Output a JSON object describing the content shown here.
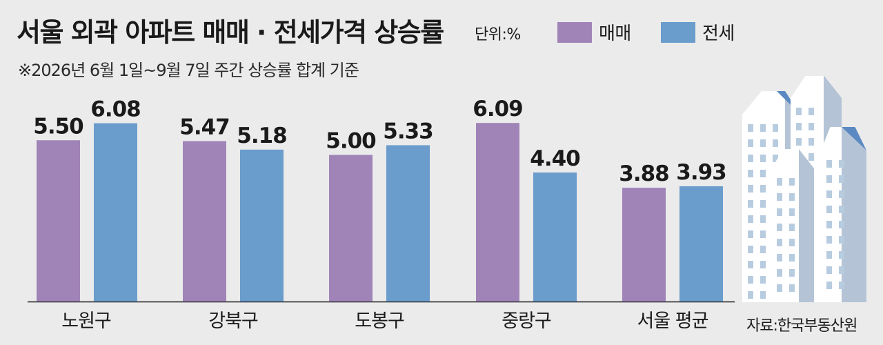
{
  "header": {
    "title": "서울 외곽 아파트 매매 · 전세가격 상승률",
    "unit": "단위:%",
    "subtitle": "※2026년 6월 1일~9월 7일 주간 상승률 합계 기준"
  },
  "legend": [
    {
      "label": "매매",
      "color": "#a084b8"
    },
    {
      "label": "전세",
      "color": "#6a9ccc"
    }
  ],
  "source": "자료:한국부동산원",
  "chart_data": {
    "type": "bar",
    "categories": [
      "노원구",
      "강북구",
      "도봉구",
      "중랑구",
      "서울 평균"
    ],
    "series": [
      {
        "name": "매매",
        "values": [
          5.5,
          5.47,
          5.0,
          6.09,
          3.88
        ],
        "labels": [
          "5.50",
          "5.47",
          "5.00",
          "6.09",
          "3.88"
        ],
        "color": "#a084b8"
      },
      {
        "name": "전세",
        "values": [
          6.08,
          5.18,
          5.33,
          4.4,
          3.93
        ],
        "labels": [
          "6.08",
          "5.18",
          "5.33",
          "4.40",
          "3.93"
        ],
        "color": "#6a9ccc"
      }
    ],
    "ylim": [
      0,
      7
    ],
    "grid": false,
    "legend_position": "top"
  }
}
